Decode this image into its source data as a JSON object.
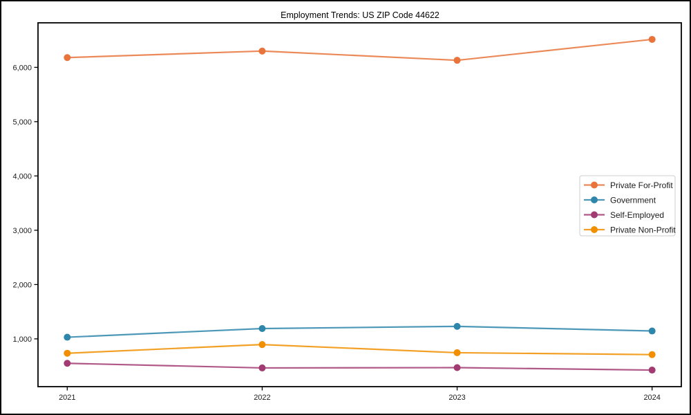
{
  "window": {
    "background_color": "#ffffff",
    "frame_border_color": "#000000"
  },
  "chart_data": {
    "type": "line",
    "title": "Employment Trends: US ZIP Code 44622",
    "xlabel": "",
    "ylabel": "",
    "x": [
      2021,
      2022,
      2023,
      2024
    ],
    "xtick_labels": [
      "2021",
      "2022",
      "2023",
      "2024"
    ],
    "yticks": [
      1000,
      2000,
      3000,
      4000,
      5000,
      6000
    ],
    "ytick_labels": [
      "1,000",
      "2,000",
      "3,000",
      "4,000",
      "5,000",
      "6,000"
    ],
    "xlim": [
      2020.85,
      2024.15
    ],
    "ylim": [
      120,
      6820
    ],
    "grid": false,
    "marker": "circle",
    "axis_color": "#000000",
    "tick_text_color": "#1a1a1a",
    "legend": {
      "position": "center-right",
      "background": "#ffffff",
      "border_color": "#cccccc"
    },
    "series": [
      {
        "name": "Private For-Profit",
        "color": "#E8743B",
        "values": [
          6180,
          6300,
          6130,
          6515
        ]
      },
      {
        "name": "Government",
        "color": "#2E86AB",
        "values": [
          1030,
          1190,
          1230,
          1145
        ]
      },
      {
        "name": "Self-Employed",
        "color": "#A23B72",
        "values": [
          550,
          465,
          470,
          425
        ]
      },
      {
        "name": "Private Non-Profit",
        "color": "#F18F01",
        "values": [
          735,
          895,
          745,
          710
        ]
      }
    ]
  }
}
